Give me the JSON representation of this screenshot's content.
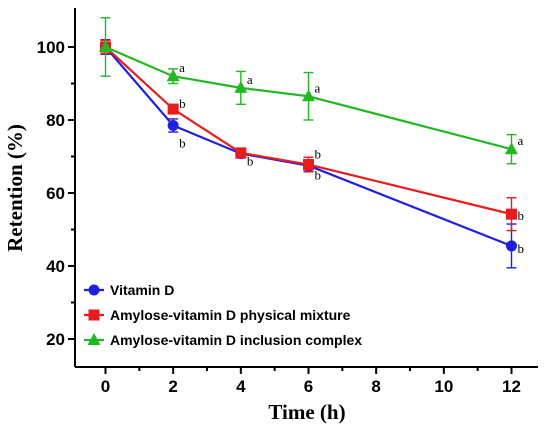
{
  "chart_data": {
    "type": "line",
    "xlabel": "Time (h)",
    "ylabel": "Retention (%)",
    "x": [
      0,
      2,
      4,
      6,
      12
    ],
    "xticks": [
      0,
      2,
      4,
      6,
      8,
      10,
      12
    ],
    "yticks": [
      20,
      40,
      60,
      80,
      100
    ],
    "xlim": [
      -1,
      13
    ],
    "ylim": [
      14,
      110
    ],
    "grid": false,
    "legend_position": "bottom-left",
    "series": [
      {
        "name": "Vitamin D",
        "color": "#1f1fe0",
        "marker": "circle",
        "values": [
          100,
          78.5,
          70.8,
          67.5,
          45.5
        ],
        "errors": [
          2.0,
          1.8,
          1.2,
          1.5,
          6.0
        ],
        "labels": [
          "",
          "b",
          "b",
          "b",
          "b"
        ]
      },
      {
        "name": "Amylose-vitamin D physical mixture",
        "color": "#e81c1c",
        "marker": "square",
        "values": [
          100,
          83,
          71,
          67.8,
          54.2
        ],
        "errors": [
          1.8,
          1.2,
          1.0,
          2.0,
          4.5
        ],
        "labels": [
          "",
          "b",
          "",
          "b",
          "b"
        ]
      },
      {
        "name": "Amylose-vitamin D inclusion complex",
        "color": "#22b822",
        "marker": "triangle",
        "values": [
          100,
          92,
          88.8,
          86.5,
          72
        ],
        "errors": [
          8.0,
          2.0,
          4.5,
          6.5,
          4.0
        ],
        "labels": [
          "",
          "a",
          "a",
          "a",
          "a"
        ]
      }
    ]
  }
}
